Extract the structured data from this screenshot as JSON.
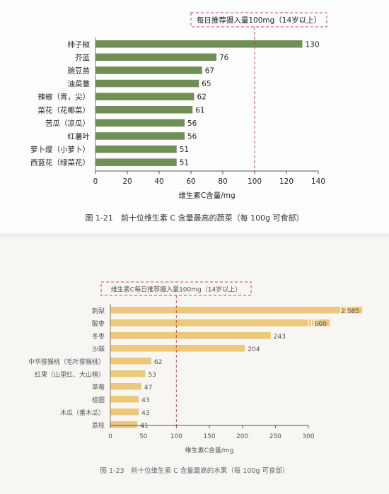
{
  "chart_data": [
    {
      "type": "bar",
      "orientation": "horizontal",
      "categories": [
        "柿子椒",
        "芥蓝",
        "豌豆苗",
        "油菜薹",
        "辣椒（青，尖）",
        "菜花（花椰菜）",
        "苦瓜（凉瓜）",
        "红薯叶",
        "萝卜缨（小萝卜）",
        "西蓝花（绿菜花）"
      ],
      "values": [
        130,
        76,
        67,
        65,
        62,
        61,
        56,
        56,
        51,
        51
      ],
      "value_labels": [
        "130",
        "76",
        "67",
        "65",
        "62",
        "61",
        "56",
        "56",
        "51",
        "51"
      ],
      "xlabel": "维生素C含量/mg",
      "xlim": [
        0,
        140
      ],
      "xticks": [
        "0",
        "20",
        "40",
        "60",
        "80",
        "100",
        "120",
        "140"
      ],
      "reference_line": {
        "value": 100,
        "label": "每日推荐摄入量100mg（14岁以上）"
      },
      "caption": "图 1-21　前十位维生素 C 含量最高的蔬菜（每 100g 可食部）",
      "bar_color": "#6f8f57",
      "line_color": "#d9404a"
    },
    {
      "type": "bar",
      "orientation": "horizontal",
      "categories": [
        "刺梨",
        "酸枣",
        "冬枣",
        "沙棘",
        "中华猕猴桃（毛叶猕猴桃）",
        "红果（山里红、大山楂）",
        "草莓",
        "桂圆",
        "木瓜（番木瓜）",
        "荔枝"
      ],
      "values": [
        2585,
        900,
        243,
        204,
        62,
        53,
        47,
        43,
        43,
        41
      ],
      "value_labels": [
        "2 585",
        "900",
        "243",
        "204",
        "62",
        "53",
        "47",
        "43",
        "43",
        "41"
      ],
      "truncated": [
        true,
        true,
        false,
        false,
        false,
        false,
        false,
        false,
        false,
        false
      ],
      "xlabel": "维生素C含量/mg",
      "xlim": [
        0,
        300
      ],
      "xticks": [
        "0",
        "50",
        "100",
        "150",
        "200",
        "250",
        "300"
      ],
      "reference_line": {
        "value": 100,
        "label": "维生素C每日推荐摄入量100mg（14岁以上）"
      },
      "caption": "图 1-23　前十位维生素 C 含量最高的水果（每 100g 可食部）",
      "bar_color": "#ebc87a",
      "line_color": "#d9404a"
    }
  ]
}
